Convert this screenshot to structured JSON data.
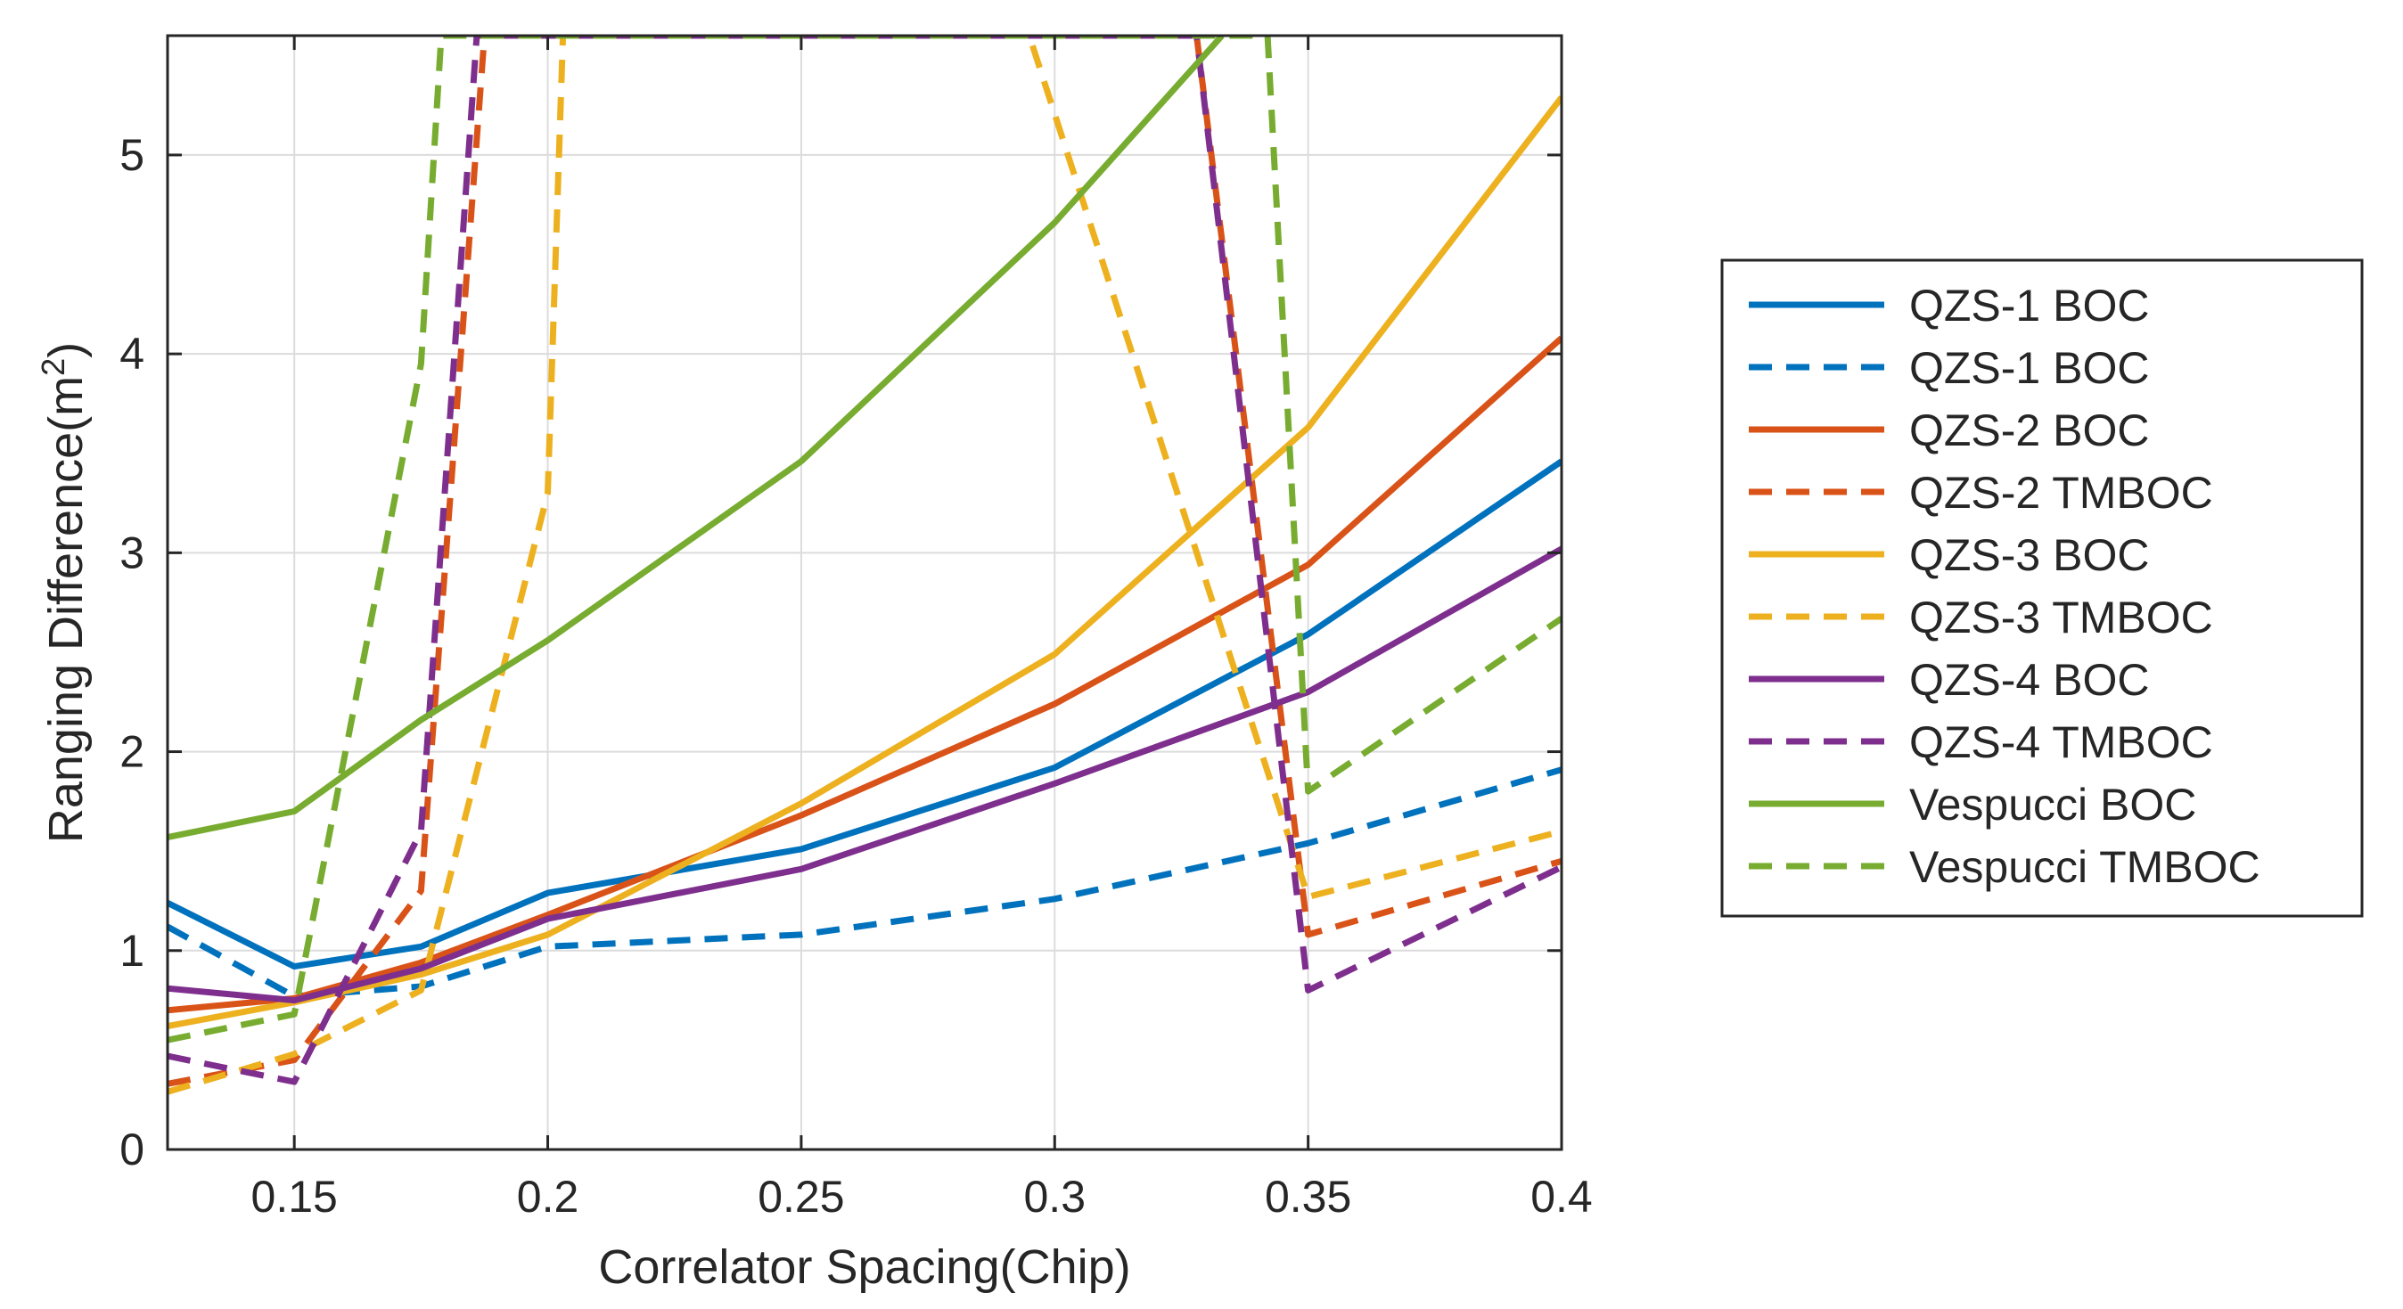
{
  "chart_data": {
    "type": "line",
    "title": "",
    "xlabel": "Correlator Spacing(Chip)",
    "ylabel_main": "Ranging Difference(m",
    "ylabel_sup": "2",
    "ylabel_close": ")",
    "xlim": [
      0.125,
      0.4
    ],
    "ylim": [
      0,
      5.6
    ],
    "xticks": [
      0.15,
      0.2,
      0.25,
      0.3,
      0.35,
      0.4
    ],
    "xtick_labels": [
      "0.15",
      "0.2",
      "0.25",
      "0.3",
      "0.35",
      "0.4"
    ],
    "yticks": [
      0,
      1,
      2,
      3,
      4,
      5
    ],
    "ytick_labels": [
      "0",
      "1",
      "2",
      "3",
      "4",
      "5"
    ],
    "grid": true,
    "legend_position": "outside-right",
    "series": [
      {
        "name": "QZS-1 BOC",
        "color": "#0072BD",
        "style": "solid",
        "points": [
          [
            0.125,
            1.24
          ],
          [
            0.15,
            0.92
          ],
          [
            0.175,
            1.02
          ],
          [
            0.2,
            1.29
          ],
          [
            0.25,
            1.51
          ],
          [
            0.3,
            1.92
          ],
          [
            0.35,
            2.59
          ],
          [
            0.4,
            3.46
          ]
        ]
      },
      {
        "name": "QZS-1 BOC",
        "color": "#0072BD",
        "style": "dashed",
        "points": [
          [
            0.125,
            1.12
          ],
          [
            0.15,
            0.77
          ],
          [
            0.175,
            0.82
          ],
          [
            0.2,
            1.02
          ],
          [
            0.25,
            1.08
          ],
          [
            0.3,
            1.26
          ],
          [
            0.35,
            1.54
          ],
          [
            0.4,
            1.91
          ]
        ]
      },
      {
        "name": "QZS-2 BOC",
        "color": "#D95319",
        "style": "solid",
        "points": [
          [
            0.125,
            0.7
          ],
          [
            0.15,
            0.76
          ],
          [
            0.175,
            0.94
          ],
          [
            0.2,
            1.18
          ],
          [
            0.25,
            1.68
          ],
          [
            0.3,
            2.24
          ],
          [
            0.35,
            2.94
          ],
          [
            0.4,
            4.08
          ]
        ]
      },
      {
        "name": "QZS-2 TMBOC",
        "color": "#D95319",
        "style": "dashed",
        "points": [
          [
            0.125,
            0.33
          ],
          [
            0.15,
            0.45
          ],
          [
            0.175,
            1.3
          ],
          [
            0.1875,
            5.6
          ],
          [
            0.328,
            5.6
          ],
          [
            0.35,
            1.08
          ],
          [
            0.4,
            1.45
          ]
        ]
      },
      {
        "name": "QZS-3 BOC",
        "color": "#EDB120",
        "style": "solid",
        "points": [
          [
            0.125,
            0.62
          ],
          [
            0.15,
            0.74
          ],
          [
            0.175,
            0.88
          ],
          [
            0.2,
            1.08
          ],
          [
            0.25,
            1.74
          ],
          [
            0.3,
            2.49
          ],
          [
            0.35,
            3.63
          ],
          [
            0.4,
            5.29
          ]
        ]
      },
      {
        "name": "QZS-3 TMBOC",
        "color": "#EDB120",
        "style": "dashed",
        "points": [
          [
            0.125,
            0.29
          ],
          [
            0.15,
            0.48
          ],
          [
            0.175,
            0.8
          ],
          [
            0.2,
            3.3
          ],
          [
            0.203,
            5.6
          ],
          [
            0.295,
            5.6
          ],
          [
            0.35,
            1.27
          ],
          [
            0.4,
            1.6
          ]
        ]
      },
      {
        "name": "QZS-4 BOC",
        "color": "#7E2F8E",
        "style": "solid",
        "points": [
          [
            0.125,
            0.81
          ],
          [
            0.15,
            0.75
          ],
          [
            0.175,
            0.91
          ],
          [
            0.2,
            1.16
          ],
          [
            0.25,
            1.41
          ],
          [
            0.3,
            1.84
          ],
          [
            0.35,
            2.3
          ],
          [
            0.4,
            3.02
          ]
        ]
      },
      {
        "name": "QZS-4 TMBOC",
        "color": "#7E2F8E",
        "style": "dashed",
        "points": [
          [
            0.125,
            0.47
          ],
          [
            0.15,
            0.34
          ],
          [
            0.175,
            1.6
          ],
          [
            0.186,
            5.6
          ],
          [
            0.328,
            5.6
          ],
          [
            0.35,
            0.8
          ],
          [
            0.4,
            1.42
          ]
        ]
      },
      {
        "name": "Vespucci BOC",
        "color": "#77AC30",
        "style": "solid",
        "points": [
          [
            0.125,
            1.57
          ],
          [
            0.15,
            1.7
          ],
          [
            0.175,
            2.16
          ],
          [
            0.2,
            2.56
          ],
          [
            0.25,
            3.46
          ],
          [
            0.3,
            4.66
          ],
          [
            0.333,
            5.6
          ]
        ]
      },
      {
        "name": "Vespucci TMBOC",
        "color": "#77AC30",
        "style": "dashed",
        "points": [
          [
            0.125,
            0.55
          ],
          [
            0.15,
            0.68
          ],
          [
            0.175,
            3.95
          ],
          [
            0.179,
            5.6
          ],
          [
            0.342,
            5.6
          ],
          [
            0.35,
            1.8
          ],
          [
            0.4,
            2.67
          ]
        ]
      }
    ]
  }
}
